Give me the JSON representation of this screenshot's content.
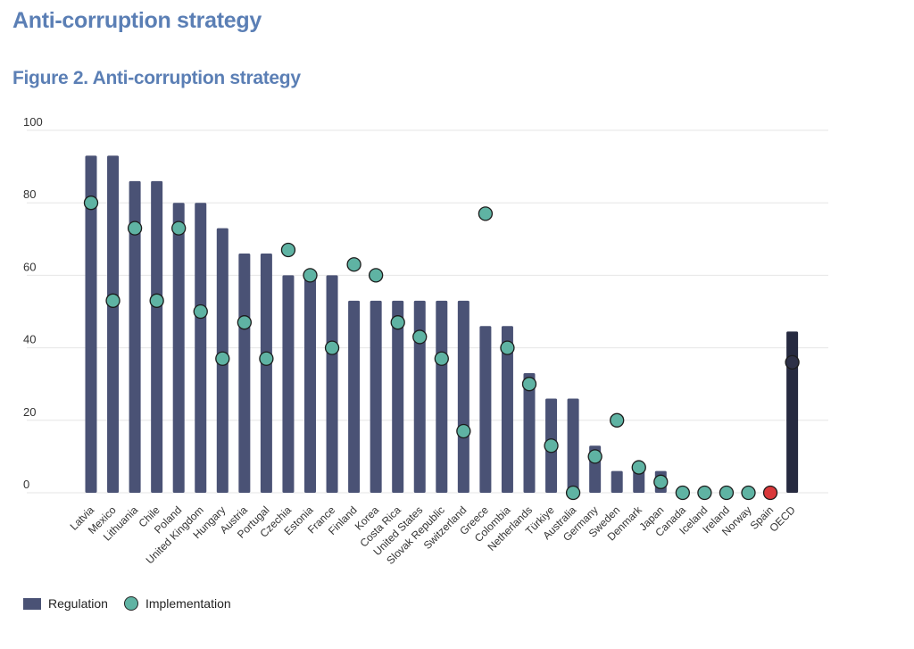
{
  "page": {
    "title": "Anti-corruption strategy",
    "figure_title": "Figure 2. Anti-corruption strategy"
  },
  "colors": {
    "regulation_bar": "#4a5275",
    "oecd_bar": "#262a40",
    "implementation_dot": "#5fb3a3",
    "spain_dot": "#d9383a",
    "oecd_dot": "#2e3147",
    "gridline": "#e6e6e6",
    "title": "#5b7fb5"
  },
  "chart_data": {
    "type": "bar",
    "title": "Figure 2. Anti-corruption strategy",
    "xlabel": "",
    "ylabel": "",
    "ylim": [
      0,
      100
    ],
    "yticks": [
      0,
      20,
      40,
      60,
      80,
      100
    ],
    "grid": true,
    "legend_position": "bottom-left",
    "categories": [
      "Latvia",
      "Mexico",
      "Lithuania",
      "Chile",
      "Poland",
      "United Kingdom",
      "Hungary",
      "Austria",
      "Portugal",
      "Czechia",
      "Estonia",
      "France",
      "Finland",
      "Korea",
      "Costa Rica",
      "United States",
      "Slovak Republic",
      "Switzerland",
      "Greece",
      "Colombia",
      "Netherlands",
      "Türkiye",
      "Australia",
      "Germany",
      "Sweden",
      "Denmark",
      "Japan",
      "Canada",
      "Iceland",
      "Ireland",
      "Norway",
      "Spain",
      "OECD"
    ],
    "series": [
      {
        "name": "Regulation",
        "kind": "bar",
        "values": [
          93,
          93,
          86,
          86,
          80,
          80,
          73,
          66,
          66,
          60,
          60,
          60,
          53,
          53,
          53,
          53,
          53,
          53,
          46,
          46,
          33,
          26,
          26,
          13,
          6,
          6,
          6,
          0,
          0,
          0,
          0,
          0,
          44.5
        ]
      },
      {
        "name": "Implementation",
        "kind": "scatter",
        "values": [
          80,
          53,
          73,
          53,
          73,
          50,
          37,
          47,
          37,
          67,
          60,
          40,
          63,
          60,
          47,
          43,
          37,
          17,
          77,
          40,
          30,
          13,
          0,
          10,
          20,
          7,
          3,
          0,
          0,
          0,
          0,
          0,
          36
        ]
      }
    ],
    "highlight": {
      "Spain": "spain_dot",
      "OECD": "oecd_bar"
    }
  }
}
